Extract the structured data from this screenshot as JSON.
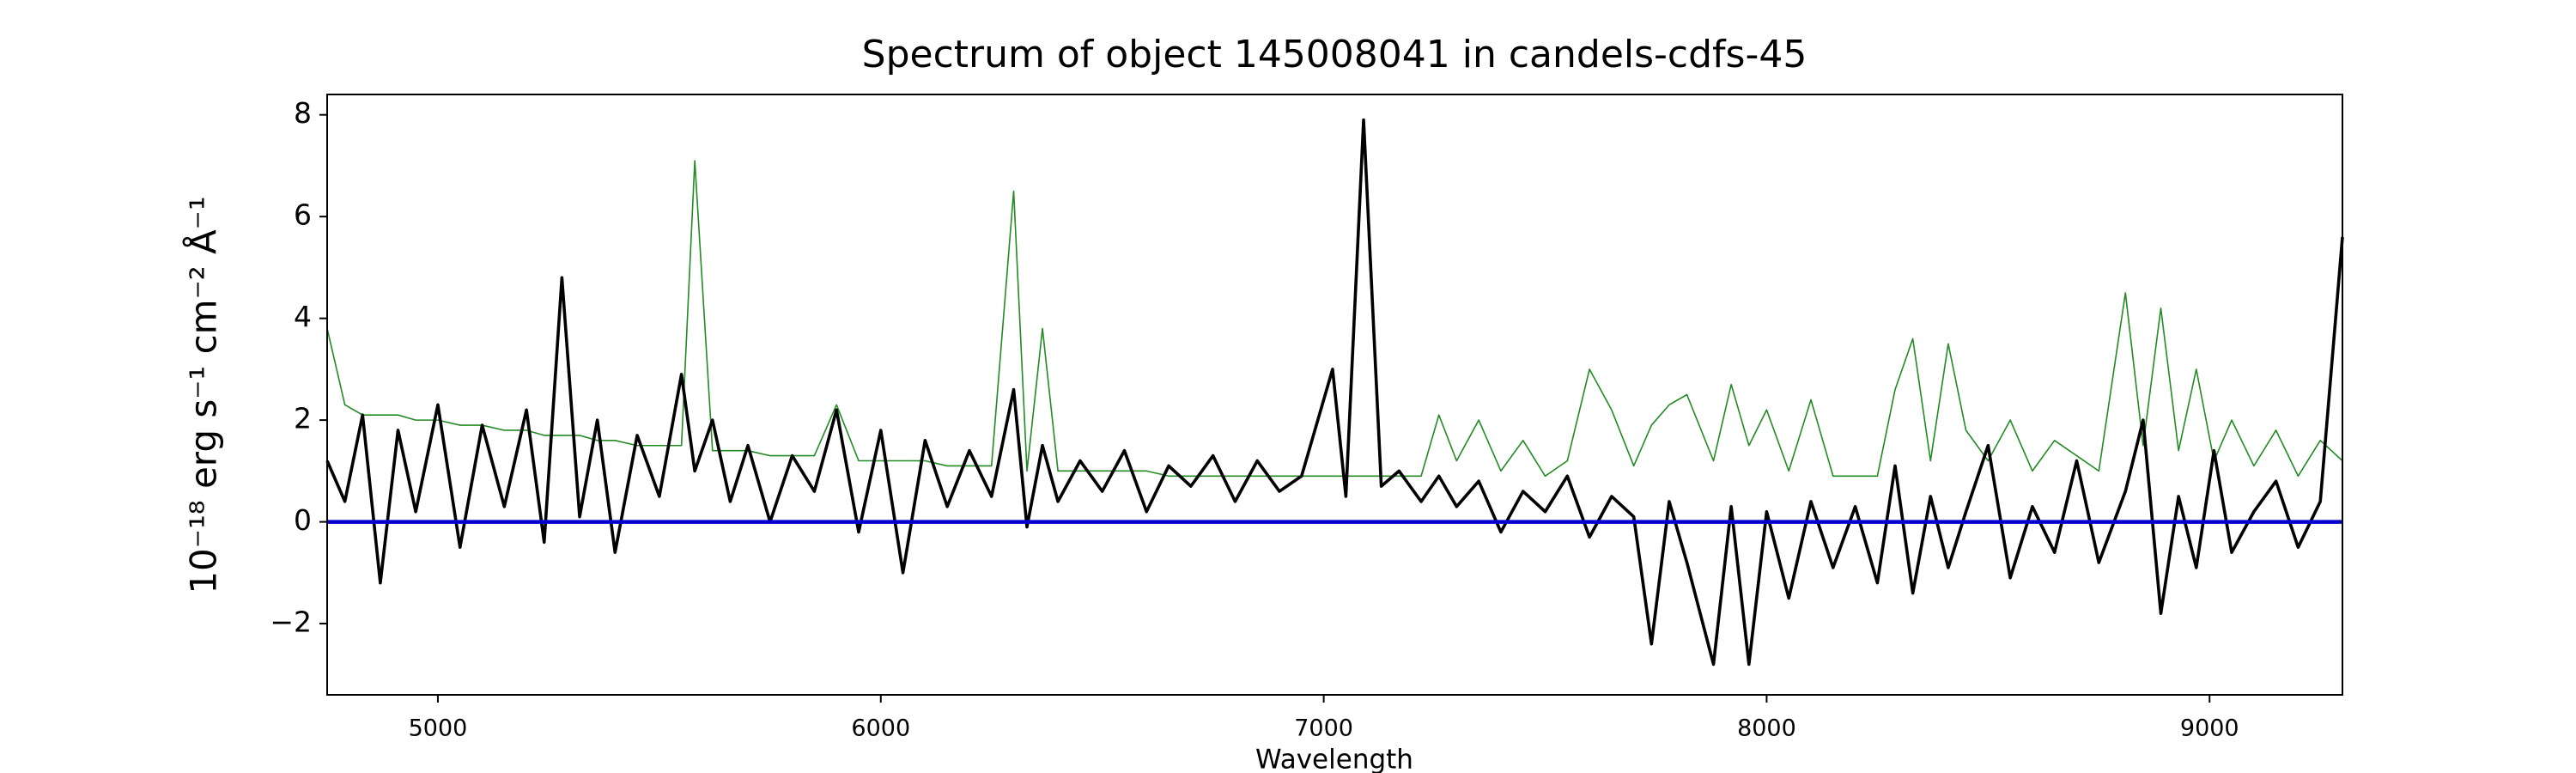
{
  "chart_data": {
    "type": "line",
    "title": "Spectrum of object 145008041 in candels-cdfs-45",
    "x_label": "Wavelength",
    "y_label": "10⁻¹⁸ erg s⁻¹ cm⁻² Å⁻¹",
    "xlim": [
      4750,
      9300
    ],
    "ylim": [
      -3.4,
      8.4
    ],
    "xticks": [
      5000,
      6000,
      7000,
      8000,
      9000
    ],
    "yticks": [
      {
        "value": -2,
        "label": "−2"
      },
      0,
      2,
      4,
      6,
      8
    ],
    "grid": false,
    "zero_line": {
      "value": 0,
      "color": "#0000cc"
    },
    "x": [
      4750,
      4790,
      4830,
      4870,
      4910,
      4950,
      5000,
      5050,
      5100,
      5150,
      5200,
      5240,
      5280,
      5320,
      5360,
      5400,
      5450,
      5500,
      5550,
      5580,
      5620,
      5660,
      5700,
      5750,
      5800,
      5850,
      5900,
      5950,
      6000,
      6050,
      6100,
      6150,
      6200,
      6250,
      6300,
      6330,
      6365,
      6400,
      6450,
      6500,
      6550,
      6600,
      6650,
      6700,
      6750,
      6800,
      6850,
      6900,
      6950,
      7020,
      7050,
      7090,
      7130,
      7170,
      7220,
      7260,
      7300,
      7350,
      7400,
      7450,
      7500,
      7550,
      7600,
      7650,
      7700,
      7740,
      7780,
      7820,
      7880,
      7920,
      7960,
      8000,
      8050,
      8100,
      8150,
      8200,
      8250,
      8290,
      8330,
      8370,
      8410,
      8450,
      8500,
      8550,
      8600,
      8650,
      8700,
      8750,
      8810,
      8850,
      8890,
      8930,
      8970,
      9010,
      9050,
      9100,
      9150,
      9200,
      9250,
      9300
    ],
    "series": [
      {
        "color": "#228b22",
        "width": 1.6,
        "values": [
          3.8,
          2.3,
          2.1,
          2.1,
          2.1,
          2.0,
          2.0,
          1.9,
          1.9,
          1.8,
          1.8,
          1.7,
          1.7,
          1.7,
          1.6,
          1.6,
          1.5,
          1.5,
          1.5,
          7.1,
          1.4,
          1.4,
          1.4,
          1.3,
          1.3,
          1.3,
          2.3,
          1.2,
          1.2,
          1.2,
          1.2,
          1.1,
          1.1,
          1.1,
          6.5,
          1.0,
          3.8,
          1.0,
          1.0,
          1.0,
          1.0,
          1.0,
          0.9,
          0.9,
          0.9,
          0.9,
          0.9,
          0.9,
          0.9,
          0.9,
          0.9,
          0.9,
          0.9,
          0.9,
          0.9,
          2.1,
          1.2,
          2.0,
          1.0,
          1.6,
          0.9,
          1.2,
          3.0,
          2.2,
          1.1,
          1.9,
          2.3,
          2.5,
          1.2,
          2.7,
          1.5,
          2.2,
          1.0,
          2.4,
          0.9,
          0.9,
          0.9,
          2.6,
          3.6,
          1.2,
          3.5,
          1.8,
          1.2,
          2.0,
          1.0,
          1.6,
          1.3,
          1.0,
          4.5,
          1.5,
          4.2,
          1.4,
          3.0,
          1.2,
          2.0,
          1.1,
          1.8,
          0.9,
          1.6,
          1.2
        ]
      },
      {
        "color": "#000000",
        "width": 3.6,
        "values": [
          1.2,
          0.4,
          2.1,
          -1.2,
          1.8,
          0.2,
          2.3,
          -0.5,
          1.9,
          0.3,
          2.2,
          -0.4,
          4.8,
          0.1,
          2.0,
          -0.6,
          1.7,
          0.5,
          2.9,
          1.0,
          2.0,
          0.4,
          1.5,
          0.0,
          1.3,
          0.6,
          2.2,
          -0.2,
          1.8,
          -1.0,
          1.6,
          0.3,
          1.4,
          0.5,
          2.6,
          -0.1,
          1.5,
          0.4,
          1.2,
          0.6,
          1.4,
          0.2,
          1.1,
          0.7,
          1.3,
          0.4,
          1.2,
          0.6,
          0.9,
          3.0,
          0.5,
          7.9,
          0.7,
          1.0,
          0.4,
          0.9,
          0.3,
          0.8,
          -0.2,
          0.6,
          0.2,
          0.9,
          -0.3,
          0.5,
          0.1,
          -2.4,
          0.4,
          -0.8,
          -2.8,
          0.3,
          -2.8,
          0.2,
          -1.5,
          0.4,
          -0.9,
          0.3,
          -1.2,
          1.1,
          -1.4,
          0.5,
          -0.9,
          0.2,
          1.5,
          -1.1,
          0.3,
          -0.6,
          1.2,
          -0.8,
          0.6,
          2.0,
          -1.8,
          0.5,
          -0.9,
          1.4,
          -0.6,
          0.2,
          0.8,
          -0.5,
          0.4,
          5.6
        ]
      }
    ]
  }
}
